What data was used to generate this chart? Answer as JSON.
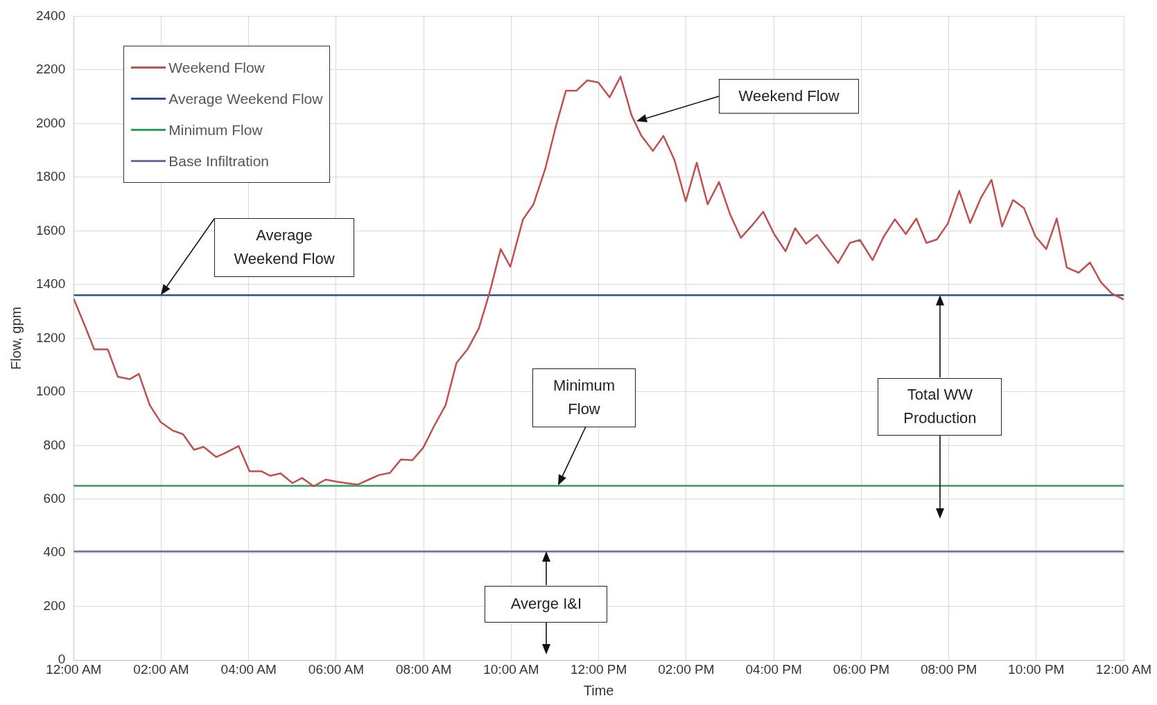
{
  "chart_data": {
    "type": "line",
    "xlabel": "Time",
    "ylabel": "Flow, gpm",
    "xlim": [
      0,
      24
    ],
    "xticks": [
      {
        "value": 0,
        "label": "12:00 AM"
      },
      {
        "value": 2,
        "label": "02:00 AM"
      },
      {
        "value": 4,
        "label": "04:00 AM"
      },
      {
        "value": 6,
        "label": "06:00 AM"
      },
      {
        "value": 8,
        "label": "08:00 AM"
      },
      {
        "value": 10,
        "label": "10:00 AM"
      },
      {
        "value": 12,
        "label": "12:00 PM"
      },
      {
        "value": 14,
        "label": "02:00 PM"
      },
      {
        "value": 16,
        "label": "04:00 PM"
      },
      {
        "value": 18,
        "label": "06:00 PM"
      },
      {
        "value": 20,
        "label": "08:00 PM"
      },
      {
        "value": 22,
        "label": "10:00 PM"
      },
      {
        "value": 24,
        "label": "12:00 AM"
      }
    ],
    "ylim": [
      0,
      2400
    ],
    "yticks": [
      0,
      200,
      400,
      600,
      800,
      1000,
      1200,
      1400,
      1600,
      1800,
      2000,
      2200,
      2400
    ],
    "grid": true,
    "legend": "top left",
    "marker": "none",
    "series": [
      {
        "name": "Weekend Flow",
        "color": "#c0504d",
        "x": [
          0,
          0.27,
          0.47,
          0.78,
          1.01,
          1.28,
          1.49,
          1.74,
          1.99,
          2.26,
          2.5,
          2.75,
          2.97,
          3.26,
          3.48,
          3.77,
          4.02,
          4.29,
          4.49,
          4.73,
          5.0,
          5.22,
          5.49,
          5.76,
          6.01,
          6.22,
          6.49,
          6.72,
          6.98,
          7.23,
          7.48,
          7.74,
          7.99,
          8.24,
          8.5,
          8.75,
          9.0,
          9.26,
          9.51,
          9.76,
          9.98,
          10.27,
          10.51,
          10.78,
          11.03,
          11.25,
          11.49,
          11.74,
          11.99,
          12.25,
          12.5,
          12.75,
          12.97,
          13.24,
          13.48,
          13.73,
          13.99,
          14.24,
          14.49,
          14.75,
          15.0,
          15.25,
          15.51,
          15.76,
          16.01,
          16.27,
          16.49,
          16.74,
          16.99,
          17.23,
          17.47,
          17.74,
          17.97,
          18.26,
          18.51,
          18.77,
          19.02,
          19.26,
          19.49,
          19.73,
          19.98,
          20.24,
          20.49,
          20.73,
          20.98,
          21.22,
          21.47,
          21.72,
          21.98,
          22.23,
          22.47,
          22.7,
          22.97,
          23.23,
          23.48,
          23.73,
          24
        ],
        "values": [
          1347,
          1241,
          1158,
          1158,
          1056,
          1047,
          1067,
          950,
          887,
          856,
          842,
          784,
          795,
          757,
          773,
          798,
          704,
          704,
          687,
          696,
          660,
          679,
          648,
          673,
          665,
          660,
          654,
          671,
          690,
          698,
          748,
          745,
          792,
          873,
          950,
          1108,
          1158,
          1236,
          1372,
          1532,
          1466,
          1643,
          1699,
          1832,
          1995,
          2122,
          2122,
          2161,
          2153,
          2098,
          2175,
          2031,
          1956,
          1898,
          1954,
          1865,
          1710,
          1854,
          1699,
          1782,
          1663,
          1574,
          1621,
          1671,
          1588,
          1524,
          1610,
          1552,
          1585,
          1532,
          1480,
          1555,
          1566,
          1491,
          1577,
          1643,
          1588,
          1646,
          1555,
          1568,
          1627,
          1749,
          1629,
          1721,
          1790,
          1616,
          1715,
          1685,
          1580,
          1532,
          1646,
          1463,
          1444,
          1482,
          1408,
          1366,
          1344
        ]
      },
      {
        "name": "Average Weekend Flow",
        "color": "#2f4f8f",
        "x": [
          0,
          24
        ],
        "values": [
          1360,
          1360
        ]
      },
      {
        "name": "Minimum Flow",
        "color": "#2ea05a",
        "x": [
          0,
          24
        ],
        "values": [
          650,
          650
        ]
      },
      {
        "name": "Base Infiltration",
        "color": "#7b64a3",
        "x": [
          0,
          24
        ],
        "values": [
          405,
          405
        ]
      }
    ],
    "annotations": [
      "Weekend Flow",
      "Average Weekend Flow",
      "Minimum Flow",
      "Total WW Production",
      "Averge I&I"
    ]
  }
}
